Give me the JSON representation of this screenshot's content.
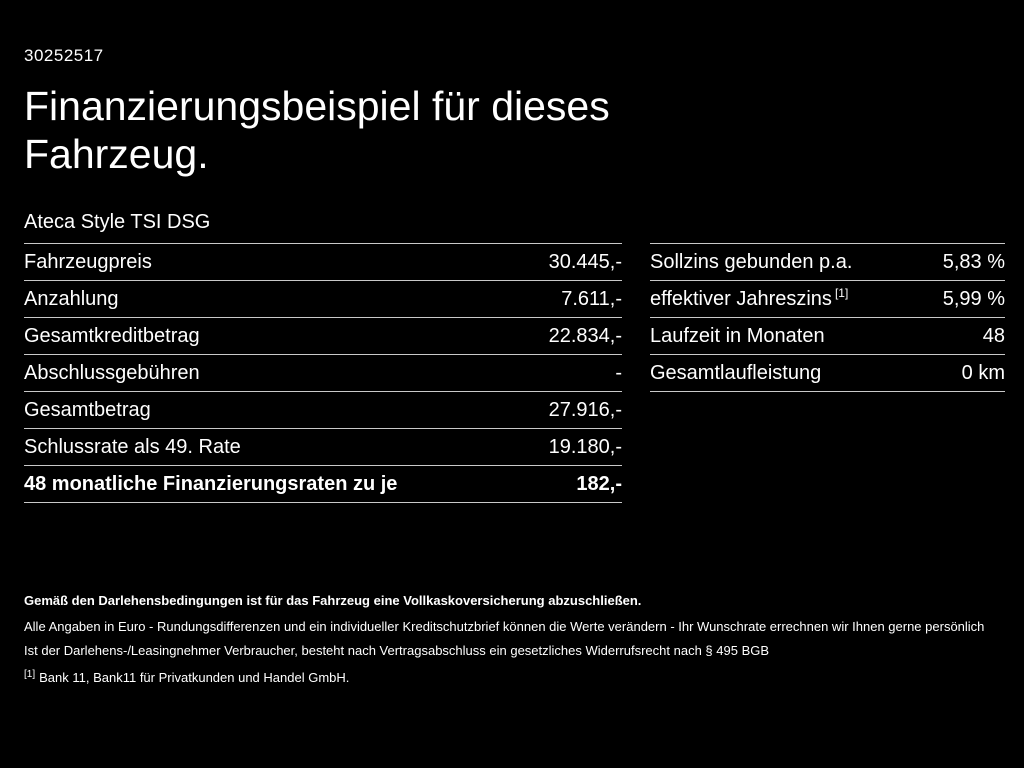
{
  "page": {
    "id_number": "30252517",
    "title": "Finanzierungsbeispiel für dieses Fahrzeug.",
    "subtitle": "Ateca Style TSI DSG"
  },
  "colors": {
    "background": "#000000",
    "text": "#ffffff",
    "divider": "#c9c9c9"
  },
  "left_table": {
    "rows": [
      {
        "label": "Fahrzeugpreis",
        "value": "30.445,-"
      },
      {
        "label": "Anzahlung",
        "value": "7.611,-"
      },
      {
        "label": "Gesamtkreditbetrag",
        "value": "22.834,-"
      },
      {
        "label": "Abschlussgebühren",
        "value": "-"
      },
      {
        "label": "Gesamtbetrag",
        "value": "27.916,-"
      },
      {
        "label": "Schlussrate als 49. Rate",
        "value": "19.180,-"
      },
      {
        "label": "48 monatliche Finanzierungsraten zu je",
        "value": "182,-"
      }
    ]
  },
  "right_table": {
    "rows": [
      {
        "label": "Sollzins gebunden p.a.",
        "sup": "",
        "value": "5,83 %"
      },
      {
        "label": "effektiver Jahreszins",
        "sup": "[1]",
        "value": "5,99 %"
      },
      {
        "label": "Laufzeit in Monaten",
        "sup": "",
        "value": "48"
      },
      {
        "label": "Gesamtlaufleistung",
        "sup": "",
        "value": "0 km"
      }
    ]
  },
  "footer": {
    "line1": "Gemäß den Darlehensbedingungen ist für das Fahrzeug eine Vollkaskoversicherung abzuschließen.",
    "line2": "Alle Angaben in Euro - Rundungsdifferenzen und ein individueller Kreditschutzbrief können die Werte verändern - Ihr Wunschrate errechnen wir Ihnen gerne persönlich",
    "line3": "Ist der Darlehens-/Leasingnehmer Verbraucher, besteht nach Vertragsabschluss ein gesetzliches Widerrufsrecht nach § 495 BGB",
    "footnote_marker": "[1]",
    "footnote_text": "Bank 11, Bank11 für Privatkunden und Handel GmbH."
  }
}
